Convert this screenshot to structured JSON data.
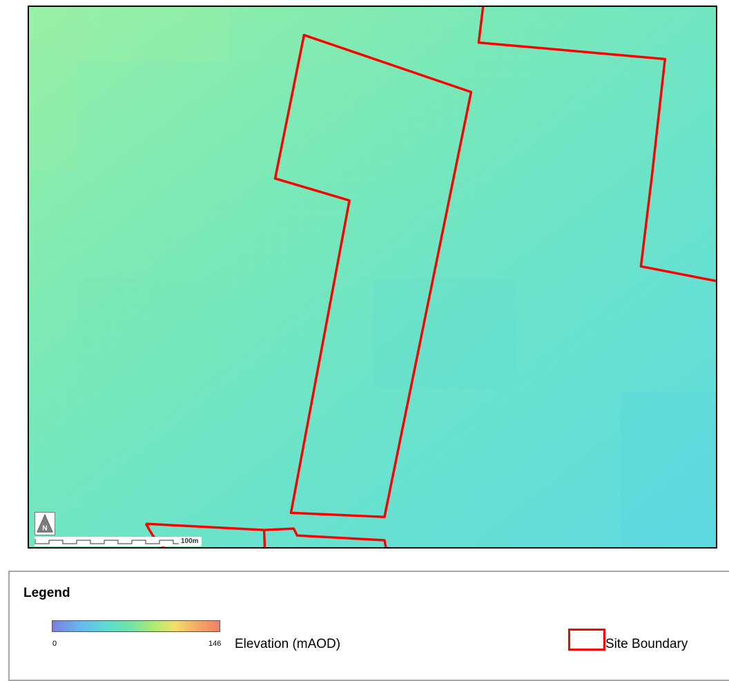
{
  "map": {
    "scale_label": "100m",
    "north_label": "N",
    "colors": {
      "terrain_light": "#96f0a6",
      "terrain_mid": "#6fe6c6",
      "terrain_dark": "#62dce0",
      "boundary": "#ff0000"
    }
  },
  "legend": {
    "title": "Legend",
    "ramp": {
      "min": "0",
      "max": "146",
      "label": "Elevation (mAOD)",
      "colors": [
        "#7b7fdc",
        "#69b7ee",
        "#5fdccf",
        "#74e3a6",
        "#a9ea73",
        "#f0e06a",
        "#f5a865",
        "#f07f68"
      ]
    },
    "site_boundary": {
      "label": "Site Boundary",
      "color": "#ff0000"
    }
  }
}
